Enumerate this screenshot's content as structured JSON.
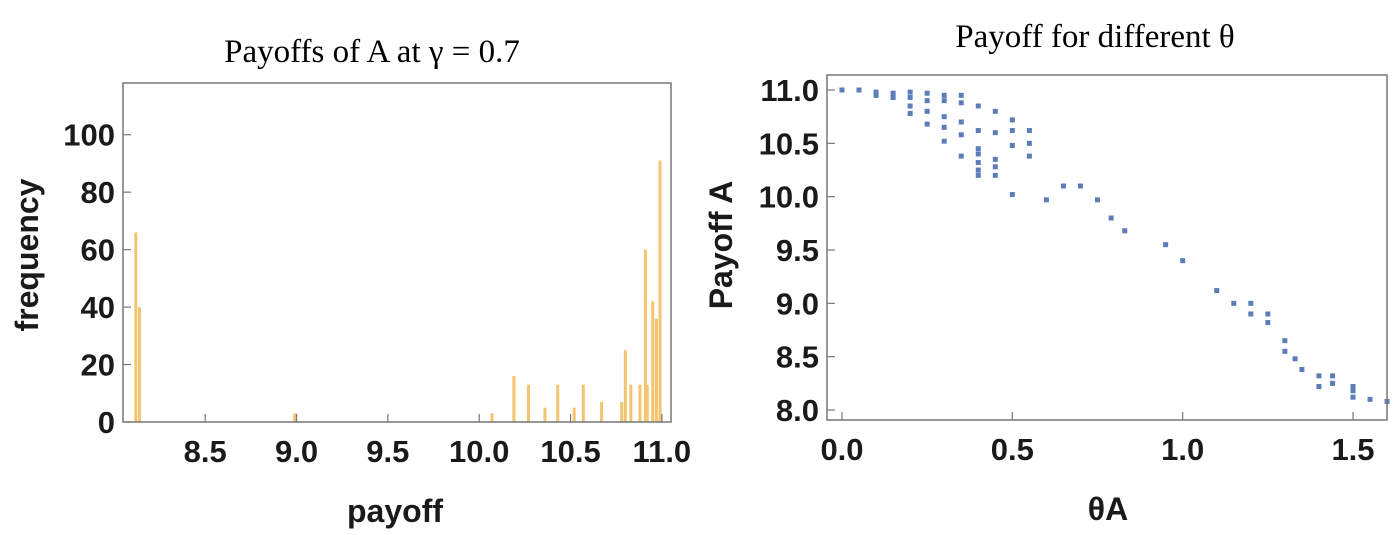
{
  "chart_data": [
    {
      "type": "bar",
      "title": "Payoffs of A at γ = 0.7",
      "xlabel": "payoff",
      "ylabel": "frequency",
      "xlim": [
        8.05,
        11.05
      ],
      "ylim": [
        0,
        118
      ],
      "xticks": [
        "8.5",
        "9.0",
        "9.5",
        "10.0",
        "10.5",
        "11.0"
      ],
      "yticks": [
        "0",
        "20",
        "40",
        "60",
        "80",
        "100"
      ],
      "color": "#f5c46e",
      "bars": [
        {
          "x": 8.12,
          "y": 66
        },
        {
          "x": 8.14,
          "y": 40
        },
        {
          "x": 8.99,
          "y": 3
        },
        {
          "x": 10.07,
          "y": 3
        },
        {
          "x": 10.19,
          "y": 16
        },
        {
          "x": 10.27,
          "y": 13
        },
        {
          "x": 10.36,
          "y": 5
        },
        {
          "x": 10.43,
          "y": 13
        },
        {
          "x": 10.52,
          "y": 5
        },
        {
          "x": 10.57,
          "y": 13
        },
        {
          "x": 10.67,
          "y": 7
        },
        {
          "x": 10.78,
          "y": 7
        },
        {
          "x": 10.8,
          "y": 25
        },
        {
          "x": 10.83,
          "y": 13
        },
        {
          "x": 10.88,
          "y": 13
        },
        {
          "x": 10.91,
          "y": 60
        },
        {
          "x": 10.92,
          "y": 13
        },
        {
          "x": 10.95,
          "y": 42
        },
        {
          "x": 10.97,
          "y": 36
        },
        {
          "x": 10.99,
          "y": 91
        }
      ]
    },
    {
      "type": "scatter",
      "title": "Payoff for different θ",
      "xlabel": "θA",
      "ylabel": "Payoff  A",
      "xlim": [
        -0.02,
        1.6
      ],
      "ylim": [
        7.95,
        11.1
      ],
      "xticks": [
        "0.0",
        "0.5",
        "1.0",
        "1.5"
      ],
      "yticks": [
        "8.0",
        "8.5",
        "9.0",
        "9.5",
        "10.0",
        "10.5",
        "11.0"
      ],
      "color": "#5b7db8",
      "points": [
        [
          0.0,
          11.0
        ],
        [
          0.05,
          11.0
        ],
        [
          0.1,
          10.98
        ],
        [
          0.1,
          10.95
        ],
        [
          0.15,
          10.97
        ],
        [
          0.15,
          10.93
        ],
        [
          0.2,
          10.98
        ],
        [
          0.2,
          10.93
        ],
        [
          0.2,
          10.85
        ],
        [
          0.2,
          10.78
        ],
        [
          0.25,
          10.97
        ],
        [
          0.25,
          10.9
        ],
        [
          0.25,
          10.8
        ],
        [
          0.25,
          10.68
        ],
        [
          0.3,
          10.95
        ],
        [
          0.3,
          10.9
        ],
        [
          0.3,
          10.75
        ],
        [
          0.3,
          10.65
        ],
        [
          0.3,
          10.52
        ],
        [
          0.35,
          10.95
        ],
        [
          0.35,
          10.88
        ],
        [
          0.35,
          10.7
        ],
        [
          0.35,
          10.58
        ],
        [
          0.35,
          10.38
        ],
        [
          0.4,
          10.85
        ],
        [
          0.4,
          10.62
        ],
        [
          0.4,
          10.45
        ],
        [
          0.4,
          10.4
        ],
        [
          0.4,
          10.32
        ],
        [
          0.4,
          10.25
        ],
        [
          0.4,
          10.2
        ],
        [
          0.45,
          10.8
        ],
        [
          0.45,
          10.6
        ],
        [
          0.45,
          10.35
        ],
        [
          0.45,
          10.28
        ],
        [
          0.45,
          10.2
        ],
        [
          0.5,
          10.72
        ],
        [
          0.5,
          10.62
        ],
        [
          0.5,
          10.48
        ],
        [
          0.5,
          10.02
        ],
        [
          0.55,
          10.62
        ],
        [
          0.55,
          10.5
        ],
        [
          0.55,
          10.38
        ],
        [
          0.6,
          9.97
        ],
        [
          0.65,
          10.1
        ],
        [
          0.7,
          10.1
        ],
        [
          0.75,
          9.97
        ],
        [
          0.79,
          9.8
        ],
        [
          0.83,
          9.68
        ],
        [
          0.95,
          9.55
        ],
        [
          1.0,
          9.4
        ],
        [
          1.1,
          9.12
        ],
        [
          1.15,
          9.0
        ],
        [
          1.2,
          9.0
        ],
        [
          1.2,
          8.9
        ],
        [
          1.25,
          8.9
        ],
        [
          1.25,
          8.82
        ],
        [
          1.3,
          8.65
        ],
        [
          1.3,
          8.55
        ],
        [
          1.33,
          8.48
        ],
        [
          1.35,
          8.38
        ],
        [
          1.4,
          8.32
        ],
        [
          1.4,
          8.22
        ],
        [
          1.44,
          8.32
        ],
        [
          1.44,
          8.25
        ],
        [
          1.5,
          8.22
        ],
        [
          1.5,
          8.18
        ],
        [
          1.5,
          8.12
        ],
        [
          1.55,
          8.1
        ],
        [
          1.6,
          8.08
        ]
      ]
    }
  ]
}
